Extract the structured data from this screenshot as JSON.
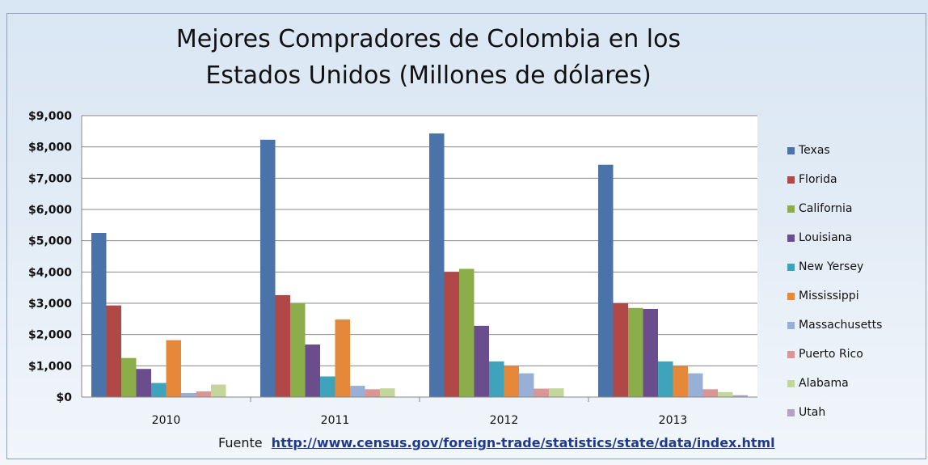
{
  "chart_data": {
    "type": "bar",
    "title": "Mejores  Compradores de Colombia en los\nEstados Unidos  (Millones de dólares)",
    "categories": [
      "2010",
      "2011",
      "2012",
      "2013"
    ],
    "yticks": [
      "$0",
      "$1,000",
      "$2,000",
      "$3,000",
      "$4,000",
      "$5,000",
      "$6,000",
      "$7,000",
      "$8,000",
      "$9,000"
    ],
    "ylim": [
      0,
      9000
    ],
    "grid": true,
    "legend_position": "right",
    "series": [
      {
        "name": "Texas",
        "color": "#4a73a9",
        "values": [
          5250,
          8230,
          8430,
          7430
        ]
      },
      {
        "name": "Florida",
        "color": "#b04848",
        "values": [
          2930,
          3260,
          4000,
          3000
        ]
      },
      {
        "name": "California",
        "color": "#8cae4a",
        "values": [
          1250,
          3000,
          4100,
          2850
        ]
      },
      {
        "name": "Louisiana",
        "color": "#6a4d8c",
        "values": [
          900,
          1680,
          2280,
          2820
        ]
      },
      {
        "name": "New Yersey",
        "color": "#3fa3bc",
        "values": [
          450,
          660,
          1140,
          1140
        ]
      },
      {
        "name": "Mississippi",
        "color": "#e5883a",
        "values": [
          1820,
          2480,
          990,
          990
        ]
      },
      {
        "name": "Massachusetts",
        "color": "#98afd6",
        "values": [
          130,
          360,
          760,
          760
        ]
      },
      {
        "name": "Puerto Rico",
        "color": "#d99694",
        "values": [
          180,
          250,
          270,
          250
        ]
      },
      {
        "name": "Alabama",
        "color": "#c3d69b",
        "values": [
          400,
          280,
          280,
          160
        ]
      },
      {
        "name": "Utah",
        "color": "#b3a2c7",
        "values": [
          0,
          0,
          0,
          60
        ]
      }
    ]
  },
  "source": {
    "label": "Fuente",
    "url": "http://www.census.gov/foreign-trade/statistics/state/data/index.html"
  }
}
